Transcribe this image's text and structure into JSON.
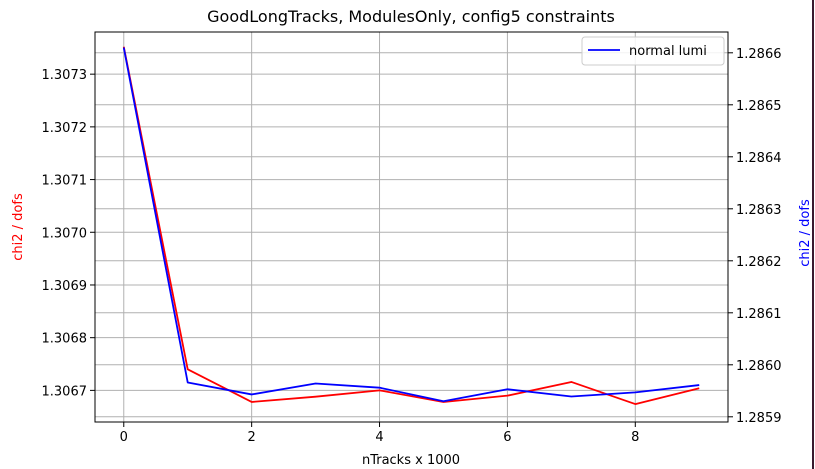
{
  "chart_data": {
    "type": "line",
    "title": "GoodLongTracks, ModulesOnly, config5 constraints",
    "xlabel": "nTracks x 1000",
    "ylabel_left": "chi2 / dofs",
    "ylabel_right": "chi2 / dofs",
    "ylabel_left_color": "#ff0000",
    "ylabel_right_color": "#0000ff",
    "xlim": [
      -0.45,
      9.45
    ],
    "ylim_left": [
      1.30664,
      1.30738
    ],
    "ylim_right": [
      1.28589,
      1.28664
    ],
    "x_ticks": [
      0,
      2,
      4,
      6,
      8
    ],
    "x_tick_labels": [
      "0",
      "2",
      "4",
      "6",
      "8"
    ],
    "y_left_ticks": [
      1.3067,
      1.3068,
      1.3069,
      1.307,
      1.3071,
      1.3072,
      1.3073
    ],
    "y_left_tick_labels": [
      "1.3067",
      "1.3068",
      "1.3069",
      "1.3070",
      "1.3071",
      "1.3072",
      "1.3073"
    ],
    "y_right_ticks": [
      1.2859,
      1.286,
      1.2861,
      1.2862,
      1.2863,
      1.2864,
      1.2865,
      1.2866
    ],
    "y_right_tick_labels": [
      "1.2859",
      "1.2860",
      "1.2861",
      "1.2862",
      "1.2863",
      "1.2864",
      "1.2865",
      "1.2866"
    ],
    "grid": true,
    "legend_position": "top-right",
    "x": [
      0,
      1,
      2,
      3,
      4,
      5,
      6,
      7,
      8,
      9
    ],
    "series": [
      {
        "axis": "left",
        "color": "#ff0000",
        "values": [
          1.307352,
          1.30674,
          1.306678,
          1.306688,
          1.3067,
          1.306678,
          1.30669,
          1.306716,
          1.306674,
          1.306704
        ]
      },
      {
        "name": "normal lumi",
        "axis": "right",
        "color": "#0000ff",
        "values": [
          1.28661,
          1.285966,
          1.285943,
          1.285964,
          1.285956,
          1.28593,
          1.285953,
          1.285939,
          1.285947,
          1.285961
        ]
      }
    ]
  }
}
